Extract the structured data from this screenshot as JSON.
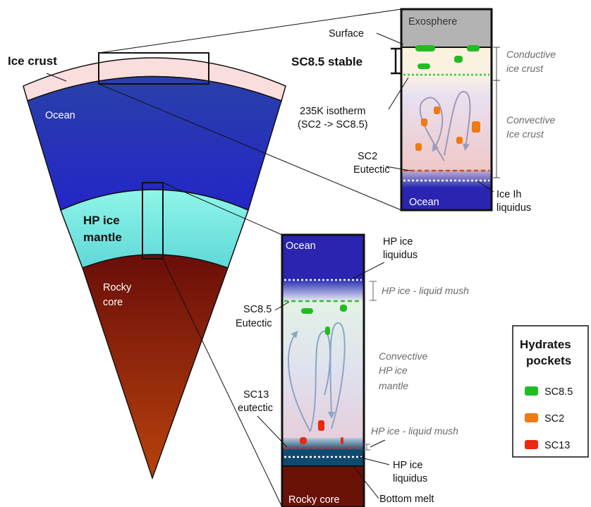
{
  "wedge": {
    "ice_crust": "Ice crust",
    "ocean": "Ocean",
    "hp_ice_line1": "HP ice",
    "hp_ice_line2": "mantle",
    "rocky_line1": "Rocky",
    "rocky_line2": "core"
  },
  "top_column": {
    "exosphere": "Exosphere",
    "ocean": "Ocean",
    "labels": {
      "surface": "Surface",
      "sc85_stable": "SC8.5 stable",
      "isotherm_line1": "235K isotherm",
      "isotherm_line2": "(SC2 -> SC8.5)",
      "sc2_line1": "SC2",
      "sc2_line2": "Eutectic",
      "liquidus_line1": "Ice Ih",
      "liquidus_line2": "liquidus",
      "conductive_line1": "Conductive",
      "conductive_line2": "ice crust",
      "convective_line1": "Convective",
      "convective_line2": "Ice crust"
    }
  },
  "bottom_column": {
    "ocean": "Ocean",
    "rocky_core": "Rocky core",
    "labels": {
      "hp_liquidus_top_line1": "HP ice",
      "hp_liquidus_top_line2": "liquidus",
      "mush_top": "HP ice - liquid mush",
      "sc85_eutectic_line1": "SC8.5",
      "sc85_eutectic_line2": "Eutectic",
      "convective_line1": "Convective",
      "convective_line2": "HP ice",
      "convective_line3": "mantle",
      "sc13_line1": "SC13",
      "sc13_line2": "eutectic",
      "mush_bottom": "HP ice - liquid mush",
      "hp_liquidus_bottom_line1": "HP ice",
      "hp_liquidus_bottom_line2": "liquidus",
      "bottom_melt": "Bottom melt"
    }
  },
  "legend": {
    "title_line1": "Hydrates",
    "title_line2": "pockets",
    "items": [
      {
        "label": "SC8.5",
        "color": "#22bb22"
      },
      {
        "label": "SC2",
        "color": "#ee7a10"
      },
      {
        "label": "SC13",
        "color": "#e82a10"
      }
    ]
  }
}
